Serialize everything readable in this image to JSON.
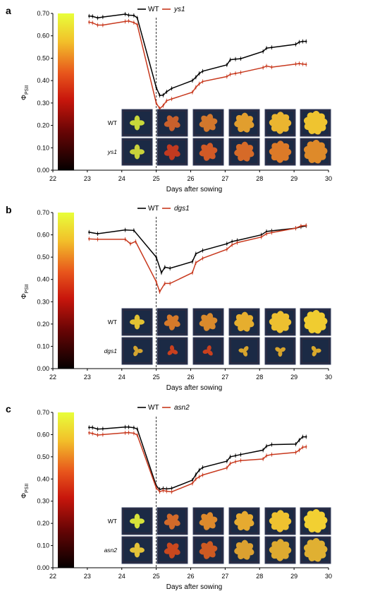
{
  "chart_data": [
    {
      "panel": "a",
      "type": "line",
      "xlabel": "Days after sowing",
      "ylabel": "ΦPSII",
      "ylabel_main": "Φ",
      "ylabel_sub": "PSII",
      "xlim": [
        22,
        30
      ],
      "ylim": [
        0,
        0.7
      ],
      "xticks": [
        "22",
        "23",
        "24",
        "25",
        "26",
        "27",
        "28",
        "29",
        "30"
      ],
      "yticks": [
        "0.00",
        "0.10",
        "0.20",
        "0.30",
        "0.40",
        "0.50",
        "0.60",
        "0.70"
      ],
      "vline_x": 25,
      "mutant": "ys1",
      "legend_wt": "WT",
      "image_rows": [
        "WT",
        "ys1"
      ],
      "series": [
        {
          "name": "WT",
          "color": "#000000",
          "x": [
            23.05,
            23.15,
            23.3,
            23.45,
            24.1,
            24.2,
            24.35,
            24.45,
            25.0,
            25.1,
            25.2,
            25.3,
            25.45,
            26.05,
            26.15,
            26.25,
            26.35,
            27.05,
            27.15,
            27.3,
            27.45,
            28.1,
            28.2,
            28.35,
            29.05,
            29.15,
            29.25,
            29.35
          ],
          "y": [
            0.688,
            0.687,
            0.68,
            0.684,
            0.697,
            0.692,
            0.691,
            0.68,
            0.37,
            0.334,
            0.335,
            0.35,
            0.365,
            0.4,
            0.415,
            0.432,
            0.442,
            0.47,
            0.493,
            0.496,
            0.498,
            0.53,
            0.545,
            0.548,
            0.562,
            0.572,
            0.575,
            0.575
          ]
        },
        {
          "name": "ys1",
          "color": "#c8391e",
          "x": [
            23.05,
            23.15,
            23.3,
            23.45,
            24.1,
            24.2,
            24.35,
            24.45,
            25.0,
            25.1,
            25.2,
            25.3,
            25.45,
            26.05,
            26.15,
            26.25,
            26.35,
            27.05,
            27.15,
            27.3,
            27.45,
            28.1,
            28.2,
            28.35,
            29.05,
            29.15,
            29.25,
            29.35
          ],
          "y": [
            0.661,
            0.658,
            0.648,
            0.648,
            0.664,
            0.666,
            0.659,
            0.65,
            0.3,
            0.275,
            0.288,
            0.31,
            0.318,
            0.348,
            0.37,
            0.386,
            0.396,
            0.418,
            0.428,
            0.432,
            0.436,
            0.458,
            0.465,
            0.46,
            0.474,
            0.476,
            0.474,
            0.472
          ]
        }
      ],
      "plant_wt": [
        "#c8d83a",
        "#c9602c",
        "#d2772c",
        "#e19e2e",
        "#eab530",
        "#efc430"
      ],
      "plant_mut": [
        "#c9d23a",
        "#c23a20",
        "#d25a26",
        "#d66a28",
        "#dc7a28",
        "#de8a2a"
      ]
    },
    {
      "panel": "b",
      "type": "line",
      "xlabel": "Days after sowing",
      "ylabel": "ΦPSII",
      "ylabel_main": "Φ",
      "ylabel_sub": "PSII",
      "xlim": [
        22,
        30
      ],
      "ylim": [
        0,
        0.7
      ],
      "xticks": [
        "22",
        "23",
        "24",
        "25",
        "26",
        "27",
        "28",
        "29",
        "30"
      ],
      "yticks": [
        "0.00",
        "0.10",
        "0.20",
        "0.30",
        "0.40",
        "0.50",
        "0.60",
        "0.70"
      ],
      "vline_x": 25,
      "mutant": "dgs1",
      "legend_wt": "WT",
      "image_rows": [
        "WT",
        "dgs1"
      ],
      "series": [
        {
          "name": "WT",
          "color": "#000000",
          "x": [
            23.05,
            23.3,
            24.1,
            24.35,
            25.0,
            25.15,
            25.25,
            25.4,
            26.05,
            26.15,
            26.35,
            27.05,
            27.2,
            27.35,
            28.05,
            28.2,
            28.35,
            29.05,
            29.2,
            29.35
          ],
          "y": [
            0.612,
            0.605,
            0.622,
            0.62,
            0.5,
            0.43,
            0.455,
            0.45,
            0.48,
            0.515,
            0.53,
            0.56,
            0.57,
            0.575,
            0.6,
            0.615,
            0.618,
            0.63,
            0.636,
            0.64
          ]
        },
        {
          "name": "dgs1",
          "color": "#c8391e",
          "x": [
            23.05,
            23.3,
            24.1,
            24.25,
            24.4,
            25.0,
            25.1,
            25.25,
            25.4,
            26.05,
            26.15,
            26.35,
            27.05,
            27.2,
            27.35,
            28.05,
            28.2,
            28.35,
            29.05,
            29.2,
            29.35
          ],
          "y": [
            0.582,
            0.58,
            0.58,
            0.56,
            0.57,
            0.39,
            0.345,
            0.382,
            0.382,
            0.43,
            0.475,
            0.495,
            0.535,
            0.555,
            0.565,
            0.59,
            0.605,
            0.61,
            0.63,
            0.64,
            0.642
          ]
        }
      ],
      "plant_wt": [
        "#e2c232",
        "#d67a2a",
        "#d98a2c",
        "#e6ae2e",
        "#edc030",
        "#f0cc30"
      ],
      "plant_mut": [
        "#d4a430",
        "#c9401e",
        "#c9401e",
        "#d6a32c",
        "#d6a32c",
        "#d8a82c"
      ]
    },
    {
      "panel": "c",
      "type": "line",
      "xlabel": "Days after sowing",
      "ylabel": "ΦPSII",
      "ylabel_main": "Φ",
      "ylabel_sub": "PSII",
      "xlim": [
        22,
        30
      ],
      "ylim": [
        0,
        0.7
      ],
      "xticks": [
        "22",
        "23",
        "24",
        "25",
        "26",
        "27",
        "28",
        "29",
        "30"
      ],
      "yticks": [
        "0.00",
        "0.10",
        "0.20",
        "0.30",
        "0.40",
        "0.50",
        "0.60",
        "0.70"
      ],
      "vline_x": 25,
      "mutant": "asn2",
      "legend_wt": "WT",
      "image_rows": [
        "WT",
        "asn2"
      ],
      "series": [
        {
          "name": "WT",
          "color": "#000000",
          "x": [
            23.05,
            23.15,
            23.3,
            23.45,
            24.1,
            24.2,
            24.35,
            24.45,
            25.0,
            25.1,
            25.2,
            25.3,
            25.45,
            26.05,
            26.15,
            26.25,
            26.35,
            27.05,
            27.15,
            27.3,
            27.45,
            28.1,
            28.2,
            28.35,
            29.05,
            29.15,
            29.25,
            29.35
          ],
          "y": [
            0.632,
            0.632,
            0.625,
            0.626,
            0.634,
            0.634,
            0.631,
            0.625,
            0.37,
            0.353,
            0.357,
            0.355,
            0.358,
            0.395,
            0.42,
            0.44,
            0.452,
            0.48,
            0.5,
            0.505,
            0.51,
            0.53,
            0.548,
            0.555,
            0.557,
            0.575,
            0.59,
            0.59
          ]
        },
        {
          "name": "asn2",
          "color": "#c8391e",
          "x": [
            23.05,
            23.15,
            23.3,
            23.45,
            24.1,
            24.2,
            24.35,
            24.45,
            25.0,
            25.1,
            25.2,
            25.3,
            25.45,
            26.05,
            26.15,
            26.25,
            26.35,
            27.05,
            27.15,
            27.3,
            27.45,
            28.1,
            28.2,
            28.35,
            29.05,
            29.15,
            29.25,
            29.35
          ],
          "y": [
            0.608,
            0.605,
            0.598,
            0.6,
            0.608,
            0.609,
            0.606,
            0.598,
            0.36,
            0.343,
            0.348,
            0.345,
            0.342,
            0.38,
            0.4,
            0.41,
            0.418,
            0.45,
            0.47,
            0.478,
            0.483,
            0.49,
            0.505,
            0.51,
            0.52,
            0.53,
            0.543,
            0.545
          ]
        }
      ],
      "plant_wt": [
        "#d6e23a",
        "#d26a2a",
        "#dd8a2c",
        "#e6aa30",
        "#efc230",
        "#f2d032"
      ],
      "plant_mut": [
        "#e3c238",
        "#c9481e",
        "#cd5a22",
        "#dba030",
        "#deaa30",
        "#e0b032"
      ]
    }
  ]
}
